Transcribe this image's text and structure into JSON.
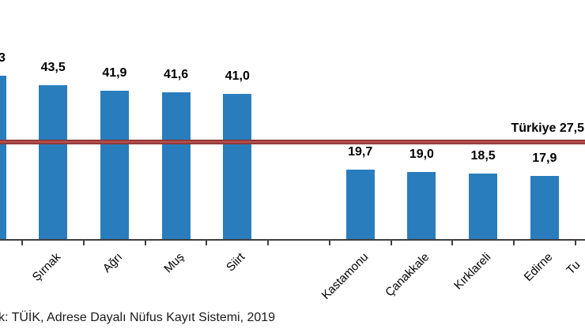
{
  "chart_data": {
    "type": "bar",
    "title": "",
    "unit": "percent",
    "grid": false,
    "legend": false,
    "ylim": [
      0,
      50
    ],
    "bar_color": "#2a7dbd",
    "axis_color": "#3f3f3f",
    "bars": [
      {
        "category": "",
        "value": 46.3,
        "value_label": "3",
        "clipped": "left"
      },
      {
        "category": "Şırnak",
        "value": 43.5,
        "value_label": "43,5",
        "clipped": ""
      },
      {
        "category": "Ağrı",
        "value": 41.9,
        "value_label": "41,9",
        "clipped": ""
      },
      {
        "category": "Muş",
        "value": 41.6,
        "value_label": "41,6",
        "clipped": ""
      },
      {
        "category": "Siirt",
        "value": 41.0,
        "value_label": "41,0",
        "clipped": ""
      },
      {
        "category": "",
        "value": null,
        "value_label": "",
        "clipped": ""
      },
      {
        "category": "Kastamonu",
        "value": 19.7,
        "value_label": "19,7",
        "clipped": ""
      },
      {
        "category": "Çanakkale",
        "value": 19.0,
        "value_label": "19,0",
        "clipped": ""
      },
      {
        "category": "Kırklareli",
        "value": 18.5,
        "value_label": "18,5",
        "clipped": ""
      },
      {
        "category": "Edirne",
        "value": 17.9,
        "value_label": "17,9",
        "clipped": ""
      },
      {
        "category": "Tu",
        "value": null,
        "value_label": "",
        "clipped": "right"
      }
    ],
    "reference_line": {
      "label": "Türkiye 27,5",
      "value": 27.5,
      "color": "#a84747"
    },
    "source_note": "k: TÜİK, Adrese Dayalı Nüfus Kayıt  Sistemi, 2019"
  }
}
